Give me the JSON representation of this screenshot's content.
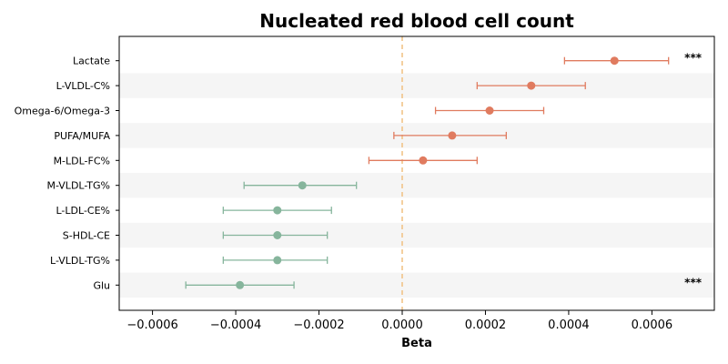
{
  "chart_data": {
    "type": "forest",
    "title": "Nucleated red blood cell count",
    "xlabel": "Beta",
    "ylabel": "",
    "xlim": [
      -0.00068,
      0.00075
    ],
    "xticks": [
      -0.0006,
      -0.0004,
      -0.0002,
      0.0,
      0.0002,
      0.0004,
      0.0006
    ],
    "xtick_labels": [
      "−0.0006",
      "−0.0004",
      "−0.0002",
      "0.0000",
      "0.0002",
      "0.0004",
      "0.0006"
    ],
    "reference_line": 0.0,
    "grid": false,
    "alternating_row_shading": true,
    "categories": [
      "Lactate",
      "L-VLDL-C%",
      "Omega-6/Omega-3",
      "PUFA/MUFA",
      "M-LDL-FC%",
      "M-VLDL-TG%",
      "L-LDL-CE%",
      "S-HDL-CE",
      "L-VLDL-TG%",
      "Glu"
    ],
    "beta": [
      0.00051,
      0.00031,
      0.00021,
      0.00012,
      5e-05,
      -0.00024,
      -0.0003,
      -0.0003,
      -0.0003,
      -0.00039
    ],
    "ci_low": [
      0.00039,
      0.00018,
      8e-05,
      -2e-05,
      -8e-05,
      -0.00038,
      -0.00043,
      -0.00043,
      -0.00043,
      -0.00052
    ],
    "ci_high": [
      0.00064,
      0.00044,
      0.00034,
      0.00025,
      0.00018,
      -0.00011,
      -0.00017,
      -0.00018,
      -0.00018,
      -0.00026
    ],
    "significance": [
      "***",
      "",
      "",
      "",
      "",
      "",
      "",
      "",
      "",
      "***"
    ],
    "colors": {
      "positive": "#e07b5f",
      "negative": "#86b59c",
      "reference_line": "#f0c080",
      "row_shade": "#f5f5f5"
    }
  }
}
